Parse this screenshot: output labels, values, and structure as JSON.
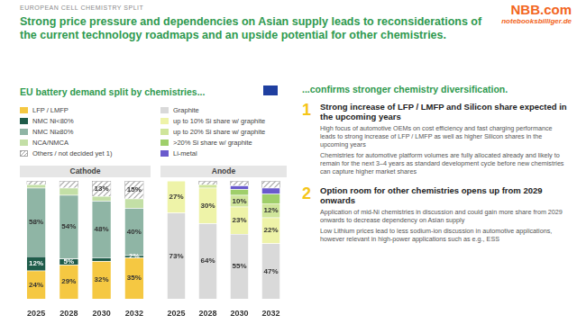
{
  "header": {
    "section": "EUROPEAN CELL CHEMISTRY SPLIT",
    "title": "Strong price pressure and dependencies on Asian supply leads to reconsiderations of the current technology roadmaps and an upside potential for other chemistries.",
    "logo": [
      "NBB.com",
      "notebooksbilliger.de"
    ]
  },
  "left_panel": {
    "heading": "EU battery demand split by chemistries..."
  },
  "chart_data": [
    {
      "type": "bar",
      "title": "Cathode",
      "stacked": true,
      "legend": "top",
      "data_labels": true,
      "tick_labels": "x",
      "grid": false,
      "categories": [
        "2025",
        "2028",
        "2030",
        "2032"
      ],
      "ylim": [
        0,
        100
      ],
      "series": [
        {
          "name": "LFP / LMFP",
          "color": "#f5c842",
          "values": [
            24,
            29,
            32,
            35
          ],
          "value_labels": [
            "24%",
            "29%",
            "32%",
            "35%"
          ]
        },
        {
          "name": "NMC Ni<80%",
          "color": "#1f5c4a",
          "values": [
            12,
            5,
            3,
            2
          ],
          "value_labels": [
            "12%",
            "5%",
            null,
            "2%"
          ]
        },
        {
          "name": "NMC Ni≥80%",
          "color": "#8fb5a5",
          "values": [
            58,
            54,
            48,
            40
          ],
          "value_labels": [
            "58%",
            "54%",
            "48%",
            "40%"
          ]
        },
        {
          "name": "NCA/NMCA",
          "color": "#c3dfa6",
          "values": [
            3,
            6,
            4,
            8
          ],
          "value_labels": [
            null,
            null,
            null,
            null
          ]
        },
        {
          "name": "Others / not decided yet 1)",
          "color": "#a6a6a6",
          "marker": "hatched",
          "values": [
            3,
            6,
            13,
            15
          ],
          "value_labels": [
            null,
            null,
            "13%",
            "15%"
          ]
        }
      ]
    },
    {
      "type": "bar",
      "title": "Anode",
      "stacked": true,
      "legend": "top",
      "data_labels": true,
      "tick_labels": "x",
      "grid": false,
      "categories": [
        "2025",
        "2028",
        "2030",
        "2032"
      ],
      "ylim": [
        0,
        100
      ],
      "series": [
        {
          "name": "Graphite",
          "color": "#d9d9d9",
          "values": [
            73,
            64,
            55,
            47
          ],
          "value_labels": [
            "73%",
            "64%",
            "55%",
            "47%"
          ]
        },
        {
          "name": "up to 10% Si share w/ graphite",
          "color": "#eef3a8",
          "values": [
            27,
            30,
            23,
            22
          ],
          "value_labels": [
            "27%",
            "30%",
            "23%",
            "22%"
          ]
        },
        {
          "name": "up to 20% Si share w/ graphite",
          "color": "#cfe59a",
          "values": [
            0,
            3,
            10,
            12
          ],
          "value_labels": [
            null,
            null,
            "10%",
            "12%"
          ]
        },
        {
          "name": ">20% Si share w/ graphite",
          "color": "#9fcf6a",
          "values": [
            0,
            0,
            5,
            8
          ],
          "value_labels": [
            null,
            null,
            null,
            null
          ]
        },
        {
          "name": "Li-metal",
          "color": "#6a5acd",
          "values": [
            0,
            0,
            3,
            5
          ],
          "value_labels": [
            null,
            null,
            null,
            null
          ]
        },
        {
          "name": "Others / not decided yet 1)",
          "color": "#a6a6a6",
          "marker": "hatched",
          "values": [
            0,
            3,
            4,
            6
          ],
          "value_labels": [
            null,
            null,
            null,
            null
          ]
        }
      ]
    }
  ],
  "right_panel": {
    "heading": "...confirms stronger chemistry diversification.",
    "points": [
      {
        "number": "1",
        "title": "Strong increase of LFP / LMFP and Silicon share expected in the upcoming years",
        "bullets": [
          "High focus of automotive OEMs on cost efficiency and fast charging performance leads to strong increase of LFP / LMFP as well as higher Silicon shares in the upcoming years",
          "Chemistries for automotive platform volumes are fully allocated already and likely to remain for the next 3–4 years as standard development cycle before new chemistries can capture higher market shares"
        ]
      },
      {
        "number": "2",
        "title": "Option room for other chemistries opens up from 2029 onwards",
        "bullets": [
          "Application of mid-Ni chemistries in discussion and could gain more share from 2029 onwards to decrease dependency on Asian supply",
          "Low Lithium prices lead to less sodium-ion discussion in automotive applications, however relevant in high-power applications such as e.g., ESS"
        ]
      }
    ]
  }
}
